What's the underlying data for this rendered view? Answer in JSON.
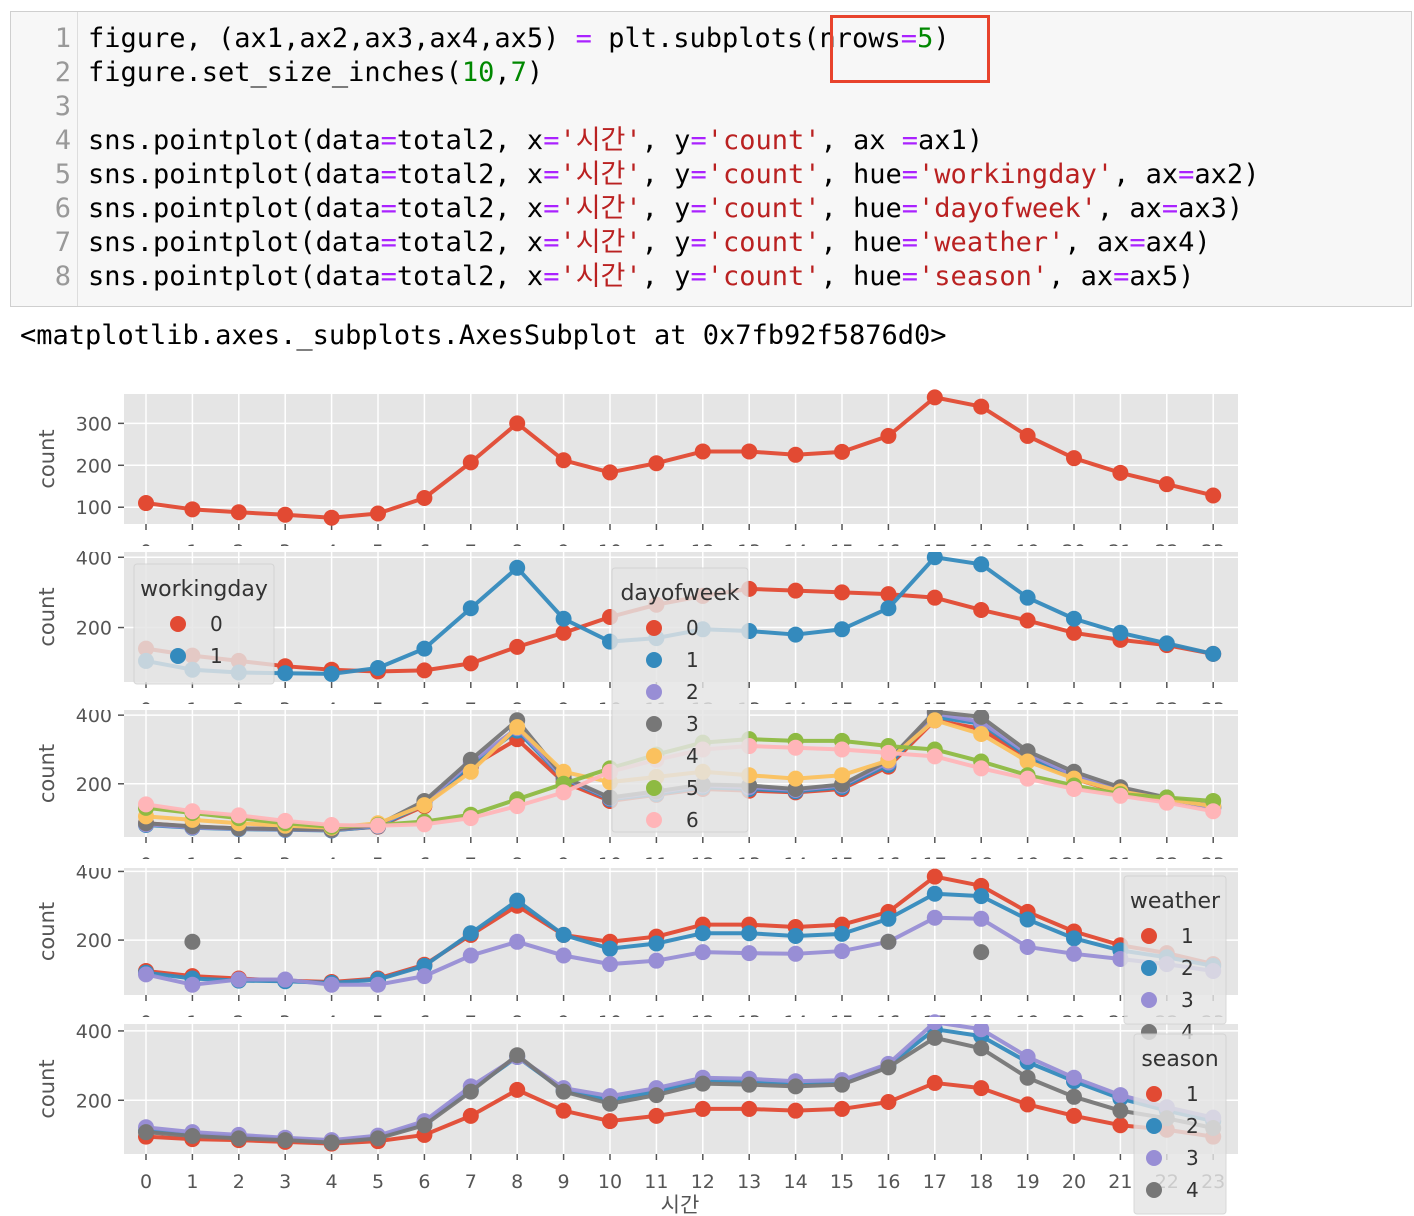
{
  "notebook": {
    "line_numbers": [
      "1",
      "2",
      "3",
      "4",
      "5",
      "6",
      "7",
      "8"
    ],
    "code_lines": [
      [
        [
          "figure, (ax1,ax2,ax3,ax4,ax5) ",
          ""
        ],
        [
          "=",
          "op"
        ],
        [
          " plt.subplots(nrows",
          ""
        ],
        [
          "=",
          "op"
        ],
        [
          "5",
          "num"
        ],
        [
          ")",
          ""
        ]
      ],
      [
        [
          "figure.set_size_inches(",
          ""
        ],
        [
          "10",
          "num"
        ],
        [
          ",",
          ""
        ],
        [
          "7",
          "num"
        ],
        [
          ")",
          ""
        ]
      ],
      [],
      [
        [
          "sns.pointplot(data",
          ""
        ],
        [
          "=",
          "op"
        ],
        [
          "total2, x",
          ""
        ],
        [
          "=",
          "op"
        ],
        [
          "'시간'",
          "str"
        ],
        [
          ", y",
          ""
        ],
        [
          "=",
          "op"
        ],
        [
          "'count'",
          "str"
        ],
        [
          ", ax ",
          ""
        ],
        [
          "=",
          "op"
        ],
        [
          "ax1)",
          ""
        ]
      ],
      [
        [
          "sns.pointplot(data",
          ""
        ],
        [
          "=",
          "op"
        ],
        [
          "total2, x",
          ""
        ],
        [
          "=",
          "op"
        ],
        [
          "'시간'",
          "str"
        ],
        [
          ", y",
          ""
        ],
        [
          "=",
          "op"
        ],
        [
          "'count'",
          "str"
        ],
        [
          ", hue",
          ""
        ],
        [
          "=",
          "op"
        ],
        [
          "'workingday'",
          "str"
        ],
        [
          ", ax",
          ""
        ],
        [
          "=",
          "op"
        ],
        [
          "ax2)",
          ""
        ]
      ],
      [
        [
          "sns.pointplot(data",
          ""
        ],
        [
          "=",
          "op"
        ],
        [
          "total2, x",
          ""
        ],
        [
          "=",
          "op"
        ],
        [
          "'시간'",
          "str"
        ],
        [
          ", y",
          ""
        ],
        [
          "=",
          "op"
        ],
        [
          "'count'",
          "str"
        ],
        [
          ", hue",
          ""
        ],
        [
          "=",
          "op"
        ],
        [
          "'dayofweek'",
          "str"
        ],
        [
          ", ax",
          ""
        ],
        [
          "=",
          "op"
        ],
        [
          "ax3)",
          ""
        ]
      ],
      [
        [
          "sns.pointplot(data",
          ""
        ],
        [
          "=",
          "op"
        ],
        [
          "total2, x",
          ""
        ],
        [
          "=",
          "op"
        ],
        [
          "'시간'",
          "str"
        ],
        [
          ", y",
          ""
        ],
        [
          "=",
          "op"
        ],
        [
          "'count'",
          "str"
        ],
        [
          ", hue",
          ""
        ],
        [
          "=",
          "op"
        ],
        [
          "'weather'",
          "str"
        ],
        [
          ", ax",
          ""
        ],
        [
          "=",
          "op"
        ],
        [
          "ax4)",
          ""
        ]
      ],
      [
        [
          "sns.pointplot(data",
          ""
        ],
        [
          "=",
          "op"
        ],
        [
          "total2, x",
          ""
        ],
        [
          "=",
          "op"
        ],
        [
          "'시간'",
          "str"
        ],
        [
          ", y",
          ""
        ],
        [
          "=",
          "op"
        ],
        [
          "'count'",
          "str"
        ],
        [
          ", hue",
          ""
        ],
        [
          "=",
          "op"
        ],
        [
          "'season'",
          "str"
        ],
        [
          ", ax",
          ""
        ],
        [
          "=",
          "op"
        ],
        [
          "ax5)",
          ""
        ]
      ]
    ],
    "output_text": "<matplotlib.axes._subplots.AxesSubplot at 0x7fb92f5876d0>"
  },
  "colors": {
    "red": "#e24a33",
    "blue": "#348abd",
    "purple": "#988ed5",
    "gray": "#777777",
    "yellow": "#fbc15e",
    "green": "#8eba42",
    "pink": "#ffb5b8",
    "panel_bg": "#e5e5e5",
    "highlight_box": "#e8432c"
  },
  "chart_data": [
    {
      "type": "line",
      "ylabel": "count",
      "xlabel": "",
      "x": [
        0,
        1,
        2,
        3,
        4,
        5,
        6,
        7,
        8,
        9,
        10,
        11,
        12,
        13,
        14,
        15,
        16,
        17,
        18,
        19,
        20,
        21,
        22,
        23
      ],
      "ylim": [
        60,
        370
      ],
      "yticks": [
        100,
        200,
        300
      ],
      "series": [
        {
          "color": "red",
          "values": [
            110,
            95,
            88,
            82,
            75,
            85,
            122,
            207,
            300,
            212,
            183,
            205,
            233,
            233,
            225,
            232,
            270,
            362,
            340,
            270,
            217,
            182,
            155,
            128
          ]
        }
      ]
    },
    {
      "type": "line",
      "ylabel": "count",
      "xlabel": "",
      "x": [
        0,
        1,
        2,
        3,
        4,
        5,
        6,
        7,
        8,
        9,
        10,
        11,
        12,
        13,
        14,
        15,
        16,
        17,
        18,
        19,
        20,
        21,
        22,
        23
      ],
      "ylim": [
        45,
        415
      ],
      "yticks": [
        200,
        400
      ],
      "legend": {
        "title": "workingday",
        "labels": [
          "0",
          "1"
        ]
      },
      "series": [
        {
          "name": "0",
          "color": "red",
          "values": [
            140,
            120,
            105,
            90,
            80,
            75,
            78,
            98,
            145,
            185,
            230,
            265,
            290,
            310,
            305,
            300,
            295,
            285,
            250,
            220,
            185,
            165,
            150,
            125
          ]
        },
        {
          "name": "1",
          "color": "blue",
          "values": [
            105,
            80,
            72,
            70,
            68,
            85,
            140,
            255,
            370,
            225,
            160,
            170,
            195,
            190,
            180,
            195,
            255,
            400,
            380,
            285,
            225,
            185,
            155,
            125
          ]
        }
      ]
    },
    {
      "type": "line",
      "ylabel": "count",
      "xlabel": "",
      "x": [
        0,
        1,
        2,
        3,
        4,
        5,
        6,
        7,
        8,
        9,
        10,
        11,
        12,
        13,
        14,
        15,
        16,
        17,
        18,
        19,
        20,
        21,
        22,
        23
      ],
      "ylim": [
        45,
        415
      ],
      "yticks": [
        200,
        400
      ],
      "legend": {
        "title": "dayofweek",
        "labels": [
          "0",
          "1",
          "2",
          "3",
          "4",
          "5",
          "6"
        ]
      },
      "series": [
        {
          "name": "0",
          "color": "red",
          "values": [
            85,
            75,
            70,
            68,
            65,
            75,
            135,
            250,
            330,
            205,
            150,
            168,
            185,
            180,
            175,
            185,
            250,
            385,
            360,
            275,
            215,
            175,
            150,
            130
          ]
        },
        {
          "name": "1",
          "color": "blue",
          "values": [
            80,
            72,
            68,
            66,
            64,
            76,
            140,
            255,
            355,
            215,
            155,
            170,
            190,
            185,
            178,
            190,
            255,
            395,
            375,
            280,
            220,
            182,
            155,
            130
          ]
        },
        {
          "name": "2",
          "color": "purple",
          "values": [
            82,
            73,
            69,
            67,
            65,
            78,
            145,
            262,
            362,
            218,
            158,
            175,
            195,
            190,
            182,
            195,
            262,
            405,
            380,
            288,
            225,
            185,
            158,
            132
          ]
        },
        {
          "name": "3",
          "color": "gray",
          "values": [
            85,
            76,
            70,
            68,
            66,
            80,
            150,
            270,
            385,
            220,
            160,
            178,
            198,
            195,
            185,
            198,
            268,
            410,
            395,
            295,
            235,
            190,
            160,
            135
          ]
        },
        {
          "name": "4",
          "color": "yellow",
          "values": [
            105,
            95,
            85,
            78,
            72,
            85,
            138,
            235,
            365,
            235,
            205,
            220,
            235,
            225,
            215,
            225,
            268,
            385,
            345,
            265,
            215,
            178,
            155,
            135
          ]
        },
        {
          "name": "5",
          "color": "green",
          "values": [
            130,
            115,
            100,
            85,
            75,
            80,
            90,
            110,
            155,
            200,
            245,
            285,
            320,
            330,
            325,
            325,
            310,
            300,
            265,
            225,
            195,
            170,
            160,
            150
          ]
        },
        {
          "name": "6",
          "color": "pink",
          "values": [
            140,
            120,
            108,
            92,
            80,
            78,
            82,
            100,
            135,
            175,
            235,
            270,
            300,
            310,
            305,
            300,
            290,
            280,
            245,
            215,
            185,
            165,
            145,
            120
          ]
        }
      ]
    },
    {
      "type": "line",
      "ylabel": "count",
      "xlabel": "",
      "x": [
        0,
        1,
        2,
        3,
        4,
        5,
        6,
        7,
        8,
        9,
        10,
        11,
        12,
        13,
        14,
        15,
        16,
        17,
        18,
        19,
        20,
        21,
        22,
        23
      ],
      "ylim": [
        40,
        410
      ],
      "yticks": [
        200,
        400
      ],
      "legend": {
        "title": "weather",
        "labels": [
          "1",
          "2",
          "3",
          "4"
        ]
      },
      "series": [
        {
          "name": "1",
          "color": "red",
          "values": [
            110,
            95,
            88,
            82,
            78,
            88,
            128,
            215,
            300,
            215,
            195,
            210,
            245,
            245,
            238,
            245,
            282,
            385,
            358,
            282,
            225,
            185,
            162,
            130
          ]
        },
        {
          "name": "2",
          "color": "blue",
          "values": [
            105,
            88,
            82,
            80,
            75,
            85,
            125,
            220,
            315,
            215,
            175,
            190,
            220,
            220,
            212,
            218,
            262,
            335,
            328,
            260,
            205,
            170,
            150,
            125
          ]
        },
        {
          "name": "3",
          "color": "purple",
          "values": [
            100,
            70,
            85,
            85,
            70,
            70,
            95,
            155,
            195,
            155,
            130,
            140,
            165,
            162,
            160,
            168,
            195,
            265,
            262,
            180,
            160,
            145,
            130,
            110
          ]
        },
        {
          "name": "4",
          "color": "gray",
          "points": [
            [
              1,
              195
            ],
            [
              16,
              195
            ],
            [
              18,
              165
            ]
          ]
        }
      ]
    },
    {
      "type": "line",
      "ylabel": "count",
      "xlabel": "시간",
      "x": [
        0,
        1,
        2,
        3,
        4,
        5,
        6,
        7,
        8,
        9,
        10,
        11,
        12,
        13,
        14,
        15,
        16,
        17,
        18,
        19,
        20,
        21,
        22,
        23
      ],
      "ylim": [
        45,
        420
      ],
      "yticks": [
        200,
        400
      ],
      "legend": {
        "title": "season",
        "labels": [
          "1",
          "2",
          "3",
          "4"
        ]
      },
      "series": [
        {
          "name": "1",
          "color": "red",
          "values": [
            95,
            88,
            85,
            80,
            75,
            82,
            100,
            155,
            230,
            170,
            140,
            155,
            175,
            175,
            170,
            175,
            195,
            250,
            235,
            188,
            155,
            128,
            115,
            95
          ]
        },
        {
          "name": "2",
          "color": "blue",
          "values": [
            112,
            100,
            95,
            88,
            80,
            92,
            135,
            230,
            325,
            228,
            200,
            225,
            258,
            255,
            250,
            255,
            300,
            405,
            385,
            310,
            255,
            205,
            170,
            140
          ]
        },
        {
          "name": "3",
          "color": "purple",
          "values": [
            122,
            108,
            100,
            92,
            85,
            98,
            140,
            240,
            325,
            235,
            212,
            235,
            265,
            262,
            255,
            258,
            305,
            425,
            405,
            325,
            265,
            215,
            180,
            150
          ]
        },
        {
          "name": "4",
          "color": "gray",
          "values": [
            108,
            97,
            90,
            85,
            78,
            90,
            128,
            225,
            330,
            225,
            190,
            215,
            248,
            245,
            240,
            245,
            295,
            380,
            350,
            265,
            210,
            170,
            148,
            120
          ]
        }
      ]
    }
  ]
}
